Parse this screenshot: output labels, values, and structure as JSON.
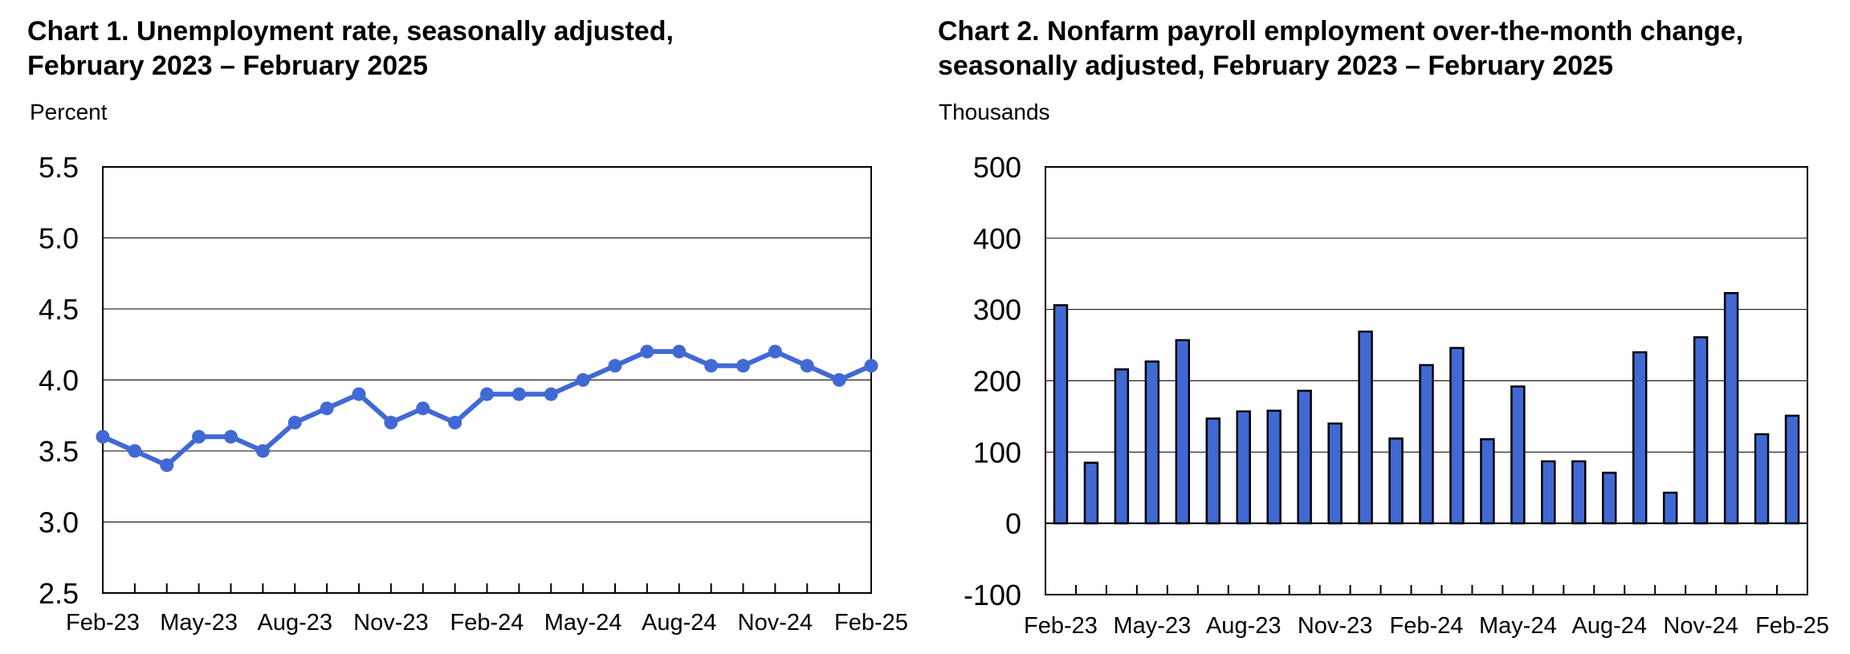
{
  "chart_data": [
    {
      "type": "line",
      "title_lines": [
        "Chart 1. Unemployment rate, seasonally adjusted,",
        "February 2023 – February 2025"
      ],
      "ylabel": "Percent",
      "xlabel": "",
      "ylim": [
        2.5,
        5.5
      ],
      "yticks": [
        "2.5",
        "3.0",
        "3.5",
        "4.0",
        "4.5",
        "5.0",
        "5.5"
      ],
      "xtick_labels": [
        "Feb-23",
        "May-23",
        "Aug-23",
        "Nov-23",
        "Feb-24",
        "May-24",
        "Aug-24",
        "Nov-24",
        "Feb-25"
      ],
      "categories": [
        "Feb-23",
        "Mar-23",
        "Apr-23",
        "May-23",
        "Jun-23",
        "Jul-23",
        "Aug-23",
        "Sep-23",
        "Oct-23",
        "Nov-23",
        "Dec-23",
        "Jan-24",
        "Feb-24",
        "Mar-24",
        "Apr-24",
        "May-24",
        "Jun-24",
        "Jul-24",
        "Aug-24",
        "Sep-24",
        "Oct-24",
        "Nov-24",
        "Dec-24",
        "Jan-25",
        "Feb-25"
      ],
      "series": [
        {
          "values": [
            3.6,
            3.5,
            3.4,
            3.6,
            3.6,
            3.5,
            3.7,
            3.8,
            3.9,
            3.7,
            3.8,
            3.7,
            3.9,
            3.9,
            3.9,
            4.0,
            4.1,
            4.2,
            4.2,
            4.1,
            4.1,
            4.2,
            4.1,
            4.0,
            4.1
          ]
        }
      ],
      "color": "#4169D4",
      "grid": true,
      "legend": "none"
    },
    {
      "type": "bar",
      "title_lines": [
        "Chart 2. Nonfarm payroll employment over-the-month change,",
        "seasonally adjusted, February 2023 – February 2025"
      ],
      "ylabel": "Thousands",
      "xlabel": "",
      "ylim": [
        -100,
        500
      ],
      "yticks": [
        "-100",
        "0",
        "100",
        "200",
        "300",
        "400",
        "500"
      ],
      "xtick_labels": [
        "Feb-23",
        "May-23",
        "Aug-23",
        "Nov-23",
        "Feb-24",
        "May-24",
        "Aug-24",
        "Nov-24",
        "Feb-25"
      ],
      "categories": [
        "Feb-23",
        "Mar-23",
        "Apr-23",
        "May-23",
        "Jun-23",
        "Jul-23",
        "Aug-23",
        "Sep-23",
        "Oct-23",
        "Nov-23",
        "Dec-23",
        "Jan-24",
        "Feb-24",
        "Mar-24",
        "Apr-24",
        "May-24",
        "Jun-24",
        "Jul-24",
        "Aug-24",
        "Sep-24",
        "Oct-24",
        "Nov-24",
        "Dec-24",
        "Jan-25",
        "Feb-25"
      ],
      "series": [
        {
          "values": [
            306,
            85,
            216,
            227,
            257,
            147,
            157,
            158,
            186,
            140,
            269,
            119,
            222,
            246,
            118,
            192,
            87,
            87,
            71,
            240,
            43,
            261,
            323,
            125,
            151
          ]
        }
      ],
      "color": "#4169D4",
      "grid": true,
      "legend": "none"
    }
  ]
}
